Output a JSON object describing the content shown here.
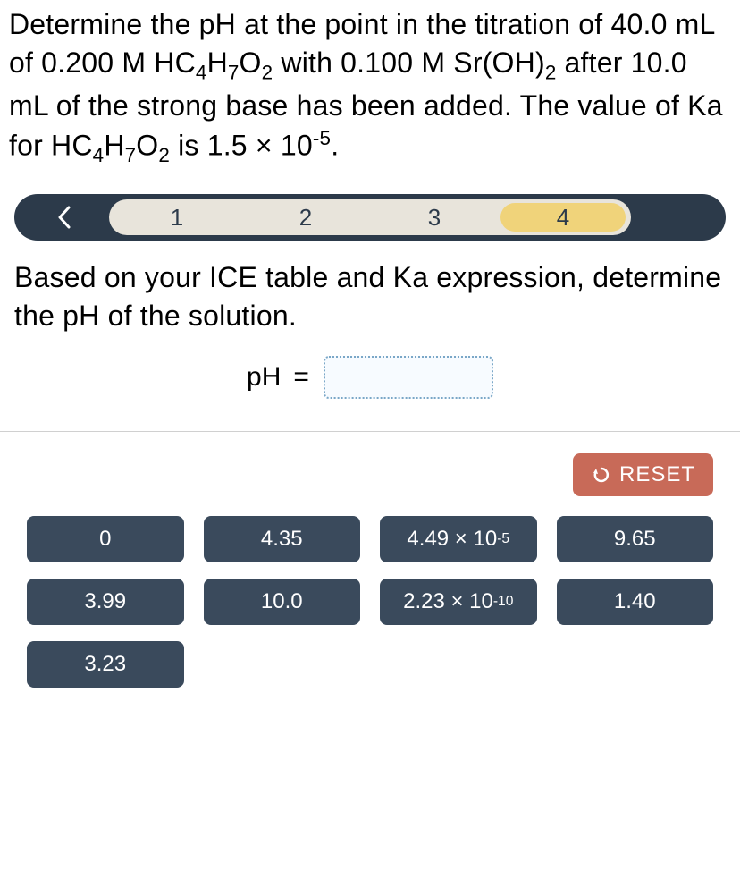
{
  "question": {
    "line1_pre": "Determine the pH at the point in the titration of 40.0 mL of 0.200 M HC",
    "sub1": "4",
    "mid1": "H",
    "sub2": "7",
    "mid2": "O",
    "sub3": "2",
    "line1_post": " with 0.100 M Sr(OH)",
    "sub4": "2",
    "line2": " after 10.0 mL of the strong base has been added. The value of Ka for HC",
    "sub5": "4",
    "mid3": "H",
    "sub6": "7",
    "mid4": "O",
    "sub7": "2",
    "line3": " is 1.5 × 10",
    "sup1": "-5",
    "period": "."
  },
  "stepper": {
    "steps": [
      "1",
      "2",
      "3",
      "4"
    ],
    "active_index": 3,
    "colors": {
      "bar_bg": "#2c3a4a",
      "track_bg": "#e8e4db",
      "bubble_bg": "#f0d37a",
      "text": "#2c3a4a",
      "chevron": "#ffffff"
    }
  },
  "subprompt": "Based on your ICE table and Ka expression, determine the pH of the solution.",
  "equation": {
    "label": "pH",
    "equals": "="
  },
  "reset": {
    "label": "RESET",
    "bg": "#c86a58"
  },
  "tiles": {
    "bg": "#3a4a5c",
    "text": "#ffffff",
    "items": [
      {
        "text": "0"
      },
      {
        "text": "4.35"
      },
      {
        "html_pre": "4.49 × 10",
        "sup": "-5"
      },
      {
        "text": "9.65"
      },
      {
        "text": "3.99"
      },
      {
        "text": "10.0"
      },
      {
        "html_pre": "2.23 × 10",
        "sup": "-10"
      },
      {
        "text": "1.40"
      },
      {
        "text": "3.23"
      }
    ]
  }
}
